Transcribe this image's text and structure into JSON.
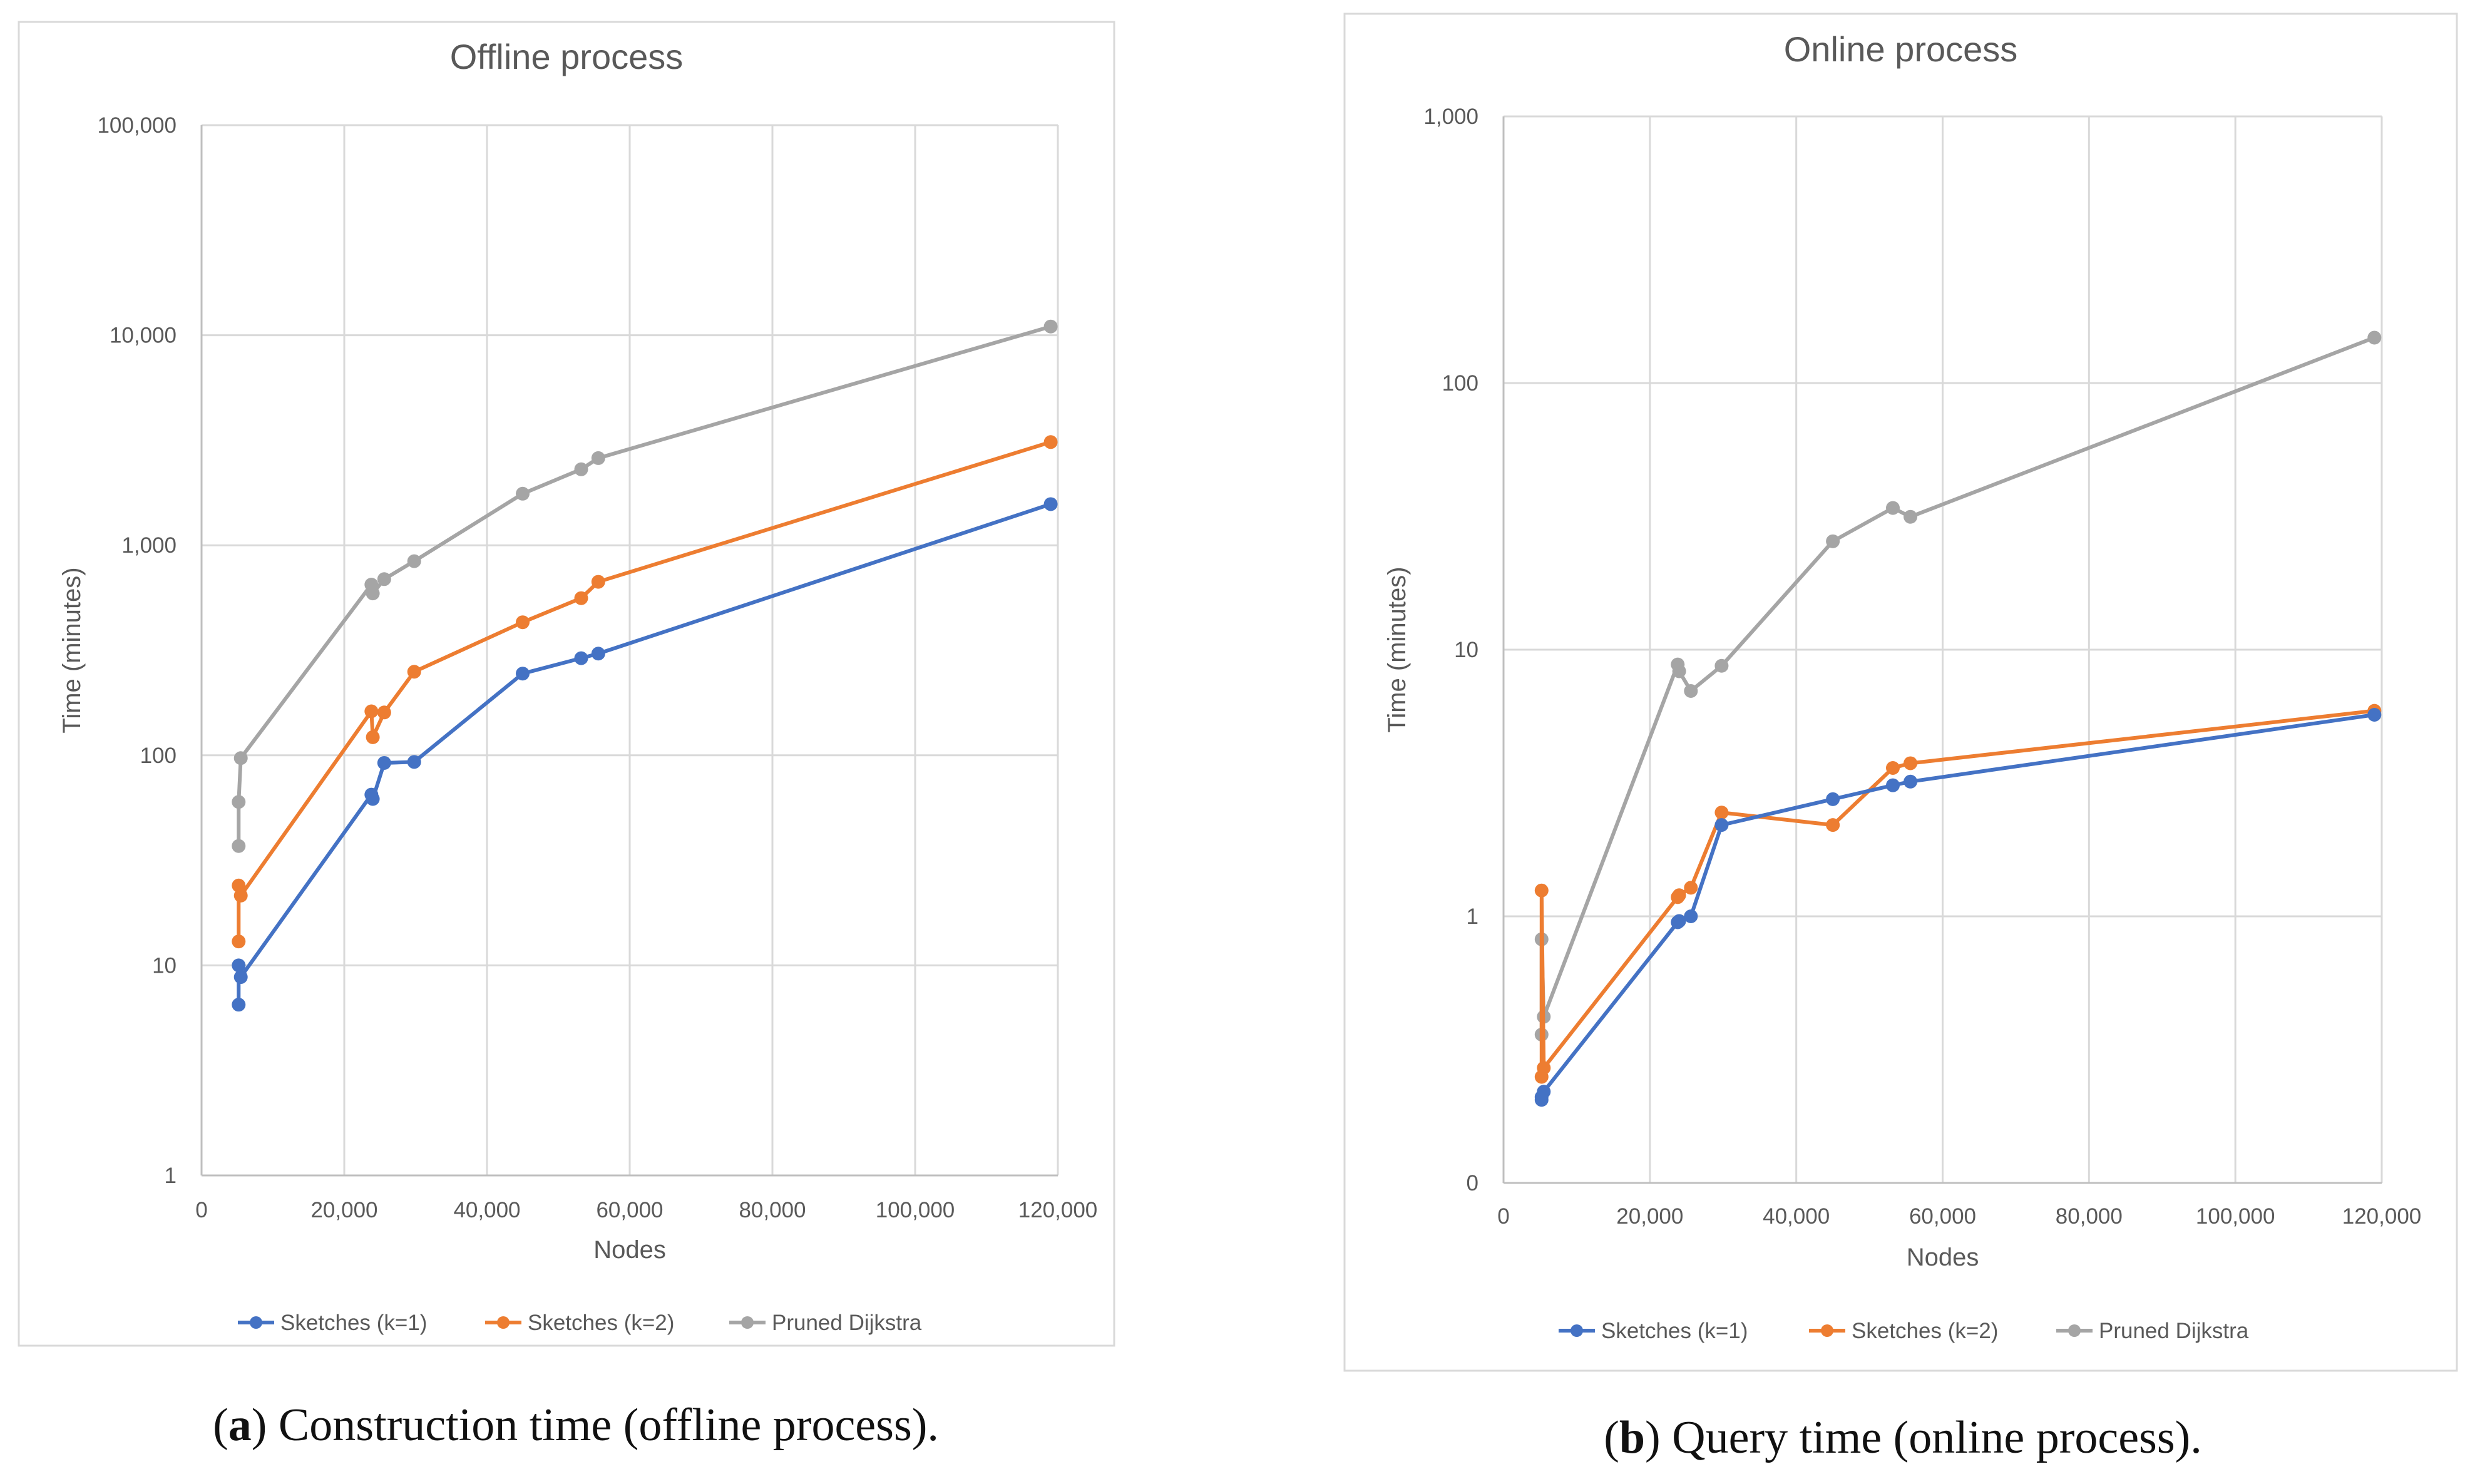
{
  "figure": {
    "captions": [
      {
        "letter": "a",
        "text": ") Construction time (offline process)."
      },
      {
        "letter": "b",
        "text": ") Query time (online process)."
      }
    ]
  },
  "colors": {
    "blue": "#4472C4",
    "orange": "#ED7D31",
    "gray": "#A5A5A5",
    "grid": "#D9D9D9",
    "frame": "#D9D9D9",
    "text": "#595959"
  },
  "chart_data": [
    {
      "type": "line",
      "title": "Offline process",
      "xlabel": "Nodes",
      "ylabel": "Time (minutes)",
      "yscale": "log",
      "xlim": [
        0,
        120000
      ],
      "ylim": [
        1,
        100000
      ],
      "xticks": [
        0,
        20000,
        40000,
        60000,
        80000,
        100000,
        120000
      ],
      "xtick_labels": [
        "0",
        "20,000",
        "40,000",
        "60,000",
        "80,000",
        "100,000",
        "120,000"
      ],
      "yticks": [
        1,
        10,
        100,
        1000,
        10000,
        100000
      ],
      "ytick_labels": [
        "1",
        "10",
        "100",
        "1,000",
        "10,000",
        "100,000"
      ],
      "series": [
        {
          "name": "Sketches (k=1)",
          "color": "#4472C4",
          "x": [
            5200,
            5200,
            5500,
            23800,
            24000,
            25600,
            29800,
            45000,
            53200,
            55600,
            119000
          ],
          "y": [
            6.5,
            10,
            8.8,
            65,
            62,
            92,
            93,
            245,
            290,
            305,
            1570
          ]
        },
        {
          "name": "Sketches (k=2)",
          "color": "#ED7D31",
          "x": [
            5200,
            5200,
            5500,
            23800,
            24000,
            25600,
            29800,
            45000,
            53200,
            55600,
            119000
          ],
          "y": [
            13,
            24,
            21.5,
            162,
            122,
            160,
            250,
            430,
            560,
            670,
            3100
          ]
        },
        {
          "name": "Pruned Dijkstra",
          "color": "#A5A5A5",
          "x": [
            5200,
            5200,
            5500,
            23800,
            24000,
            25600,
            29800,
            45000,
            53200,
            55600,
            119000
          ],
          "y": [
            37,
            60,
            97,
            650,
            590,
            690,
            840,
            1760,
            2300,
            2600,
            11000
          ]
        }
      ]
    },
    {
      "type": "line",
      "title": "Online process",
      "xlabel": "Nodes",
      "ylabel": "Time (minutes)",
      "yscale": "log",
      "xlim": [
        0,
        120000
      ],
      "ylim": [
        0.1,
        1000
      ],
      "xticks": [
        0,
        20000,
        40000,
        60000,
        80000,
        100000,
        120000
      ],
      "xtick_labels": [
        "0",
        "20,000",
        "40,000",
        "60,000",
        "80,000",
        "100,000",
        "120,000"
      ],
      "yticks": [
        0.1,
        1,
        10,
        100,
        1000
      ],
      "ytick_labels": [
        "0",
        "1",
        "10",
        "100",
        "1,000"
      ],
      "series": [
        {
          "name": "Sketches (k=1)",
          "color": "#4472C4",
          "x": [
            5200,
            5200,
            5500,
            23800,
            24000,
            25600,
            29800,
            45000,
            53200,
            55600,
            119000
          ],
          "y": [
            0.205,
            0.21,
            0.22,
            0.95,
            0.96,
            1.0,
            2.2,
            2.75,
            3.1,
            3.2,
            5.7
          ]
        },
        {
          "name": "Sketches (k=2)",
          "color": "#ED7D31",
          "x": [
            5200,
            5200,
            5500,
            23800,
            24000,
            25600,
            29800,
            45000,
            53200,
            55600,
            119000
          ],
          "y": [
            0.25,
            1.25,
            0.27,
            1.18,
            1.2,
            1.28,
            2.45,
            2.2,
            3.6,
            3.75,
            5.9
          ]
        },
        {
          "name": "Pruned Dijkstra",
          "color": "#A5A5A5",
          "x": [
            5200,
            5200,
            5500,
            23800,
            24000,
            25600,
            29800,
            45000,
            53200,
            55600,
            119000
          ],
          "y": [
            0.36,
            0.82,
            0.42,
            8.8,
            8.3,
            7.0,
            8.7,
            25.5,
            34,
            31.5,
            148
          ]
        }
      ]
    }
  ]
}
